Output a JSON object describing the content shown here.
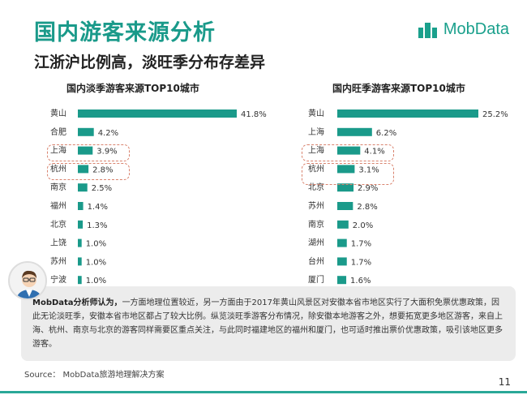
{
  "header": {
    "title": "国内游客来源分析",
    "subtitle": "江浙沪比例高，淡旺季分布存差异",
    "brand": "MobData"
  },
  "chart_data": [
    {
      "type": "bar",
      "orientation": "horizontal",
      "title": "国内淡季游客来源TOP10城市",
      "categories": [
        "黄山",
        "合肥",
        "上海",
        "杭州",
        "南京",
        "福州",
        "北京",
        "上饶",
        "苏州",
        "宁波"
      ],
      "values": [
        41.8,
        4.2,
        3.9,
        2.8,
        2.5,
        1.4,
        1.3,
        1.0,
        1.0,
        1.0
      ],
      "labels": [
        "41.8%",
        "4.2%",
        "3.9%",
        "2.8%",
        "2.5%",
        "1.4%",
        "1.3%",
        "1.0%",
        "1.0%",
        "1.0%"
      ],
      "highlighted": [
        "上海",
        "杭州"
      ],
      "color": "#1a9a8a",
      "grid": false
    },
    {
      "type": "bar",
      "orientation": "horizontal",
      "title": "国内旺季游客来源TOP10城市",
      "categories": [
        "黄山",
        "上海",
        "上海",
        "杭州",
        "北京",
        "苏州",
        "南京",
        "湖州",
        "台州",
        "厦门"
      ],
      "values": [
        25.2,
        6.2,
        4.1,
        3.1,
        2.9,
        2.8,
        2.0,
        1.7,
        1.7,
        1.6
      ],
      "labels": [
        "25.2%",
        "6.2%",
        "4.1%",
        "3.1%",
        "2.9%",
        "2.8%",
        "2.0%",
        "1.7%",
        "1.7%",
        "1.6%"
      ],
      "highlighted": [
        "上海",
        "杭州"
      ],
      "color": "#1a9a8a",
      "grid": false
    }
  ],
  "note": {
    "lead": "MobData分析师认为，",
    "text": "一方面地理位置较近，另一方面由于2017年黄山风景区对安徽本省市地区实行了大面积免票优惠政策，因此无论淡旺季，安徽本省市地区都占了较大比例。纵览淡旺季游客分布情况，除安徽本地游客之外，想要拓宽更多地区游客，来自上海、杭州、南京与北京的游客同样需要区重点关注，与此同时福建地区的福州和厦门，也可适时推出票价优惠政策，吸引该地区更多游客。"
  },
  "source": "Source： MobData旅游地理解决方案",
  "page_number": "11",
  "colors": {
    "accent": "#1a9a8a",
    "highlight_border": "#d9836e"
  }
}
